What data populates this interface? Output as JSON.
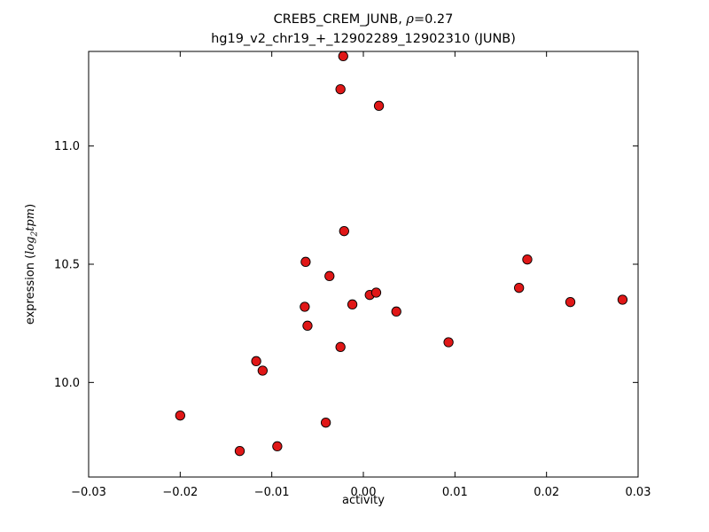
{
  "title": {
    "line1_prefix": "CREB5_CREM_JUNB, ",
    "line1_rho": "ρ",
    "line1_suffix": "=0.27",
    "line2": "hg19_v2_chr19_+_12902289_12902310 (JUNB)"
  },
  "axes": {
    "xlabel": "activity",
    "ylabel_prefix": "expression (",
    "ylabel_log": "log",
    "ylabel_sub": "2",
    "ylabel_tpm": "tpm",
    "ylabel_suffix": ")"
  },
  "chart_data": {
    "type": "scatter",
    "title": "CREB5_CREM_JUNB, ρ=0.27\nhg19_v2_chr19_+_12902289_12902310 (JUNB)",
    "xlabel": "activity",
    "ylabel": "expression (log2 tpm)",
    "xlim": [
      -0.03,
      0.03
    ],
    "ylim": [
      9.6,
      11.4
    ],
    "xticks": [
      -0.03,
      -0.02,
      -0.01,
      0.0,
      0.01,
      0.02,
      0.03
    ],
    "xtick_labels": [
      "−0.03",
      "−0.02",
      "−0.01",
      "0.00",
      "0.01",
      "0.02",
      "0.03"
    ],
    "yticks": [
      10.0,
      10.5,
      11.0
    ],
    "ytick_labels": [
      "10.0",
      "10.5",
      "11.0"
    ],
    "grid": false,
    "legend": "none",
    "marker_color": "#e01717",
    "marker_edge_color": "#000000",
    "points": [
      [
        -0.0022,
        11.38
      ],
      [
        -0.0025,
        11.24
      ],
      [
        0.0017,
        11.17
      ],
      [
        -0.0021,
        10.64
      ],
      [
        -0.0063,
        10.51
      ],
      [
        -0.0037,
        10.45
      ],
      [
        0.0179,
        10.52
      ],
      [
        0.017,
        10.4
      ],
      [
        0.0007,
        10.37
      ],
      [
        0.0014,
        10.38
      ],
      [
        -0.0012,
        10.33
      ],
      [
        -0.0064,
        10.32
      ],
      [
        0.0036,
        10.3
      ],
      [
        0.0226,
        10.34
      ],
      [
        0.0283,
        10.35
      ],
      [
        -0.0061,
        10.24
      ],
      [
        0.0093,
        10.17
      ],
      [
        -0.0025,
        10.15
      ],
      [
        -0.0117,
        10.09
      ],
      [
        -0.011,
        10.05
      ],
      [
        -0.02,
        9.86
      ],
      [
        -0.0041,
        9.83
      ],
      [
        -0.0094,
        9.73
      ],
      [
        -0.0135,
        9.71
      ]
    ]
  }
}
